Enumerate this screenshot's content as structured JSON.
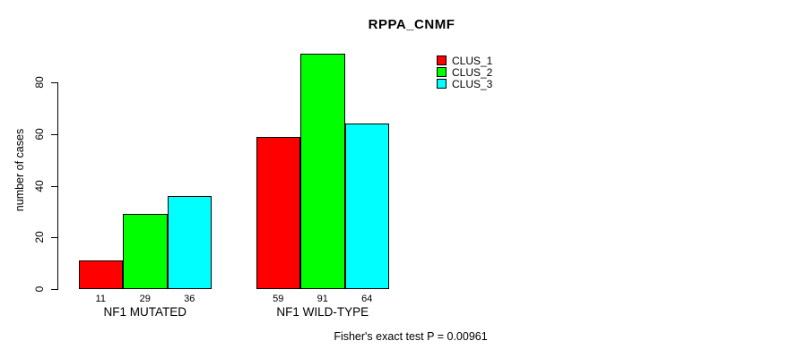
{
  "chart_data": {
    "type": "bar",
    "title": "RPPA_CNMF",
    "xlabel": "",
    "ylabel": "number of cases",
    "categories": [
      "NF1 MUTATED",
      "NF1 WILD-TYPE"
    ],
    "series": [
      {
        "name": "CLUS_1",
        "color": "#FF0000",
        "values": [
          11,
          59
        ]
      },
      {
        "name": "CLUS_2",
        "color": "#00FF00",
        "values": [
          29,
          91
        ]
      },
      {
        "name": "CLUS_3",
        "color": "#00FFFF",
        "values": [
          36,
          64
        ]
      }
    ],
    "bar_value_labels": [
      [
        11,
        29,
        36
      ],
      [
        59,
        91,
        64
      ]
    ],
    "yticks": [
      0,
      20,
      40,
      60,
      80
    ],
    "ylim": [
      0,
      80
    ],
    "grid": false,
    "legend_position": "top-right",
    "bar_border_color": "#000000",
    "axis_color": "#000000",
    "background_color": "#FFFFFF",
    "text_color": "#000000"
  },
  "footer": {
    "note": "Fisher's exact test P = 0.00961"
  }
}
